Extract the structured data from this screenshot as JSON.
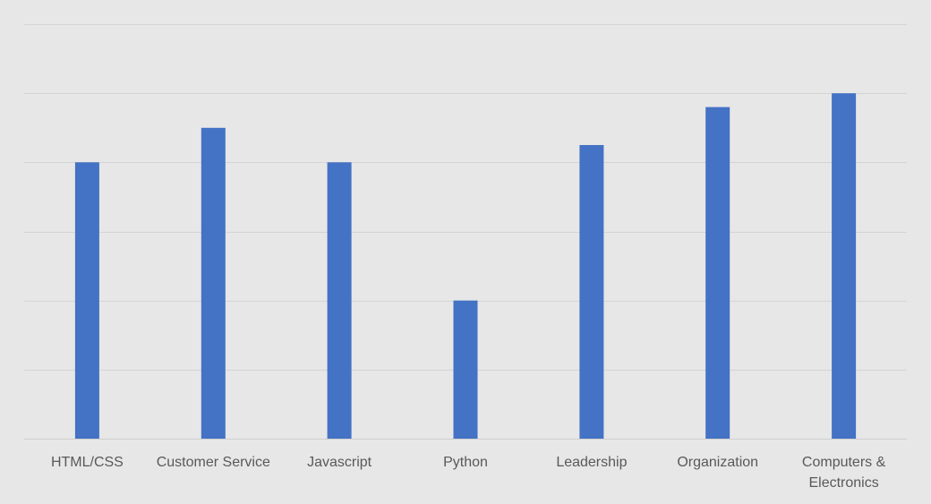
{
  "chart_data": {
    "type": "bar",
    "categories": [
      "HTML/CSS",
      "Customer Service",
      "Javascript",
      "Python",
      "Leadership",
      "Organization",
      "Computers & Electronics"
    ],
    "category_lines": [
      [
        "HTML/CSS"
      ],
      [
        "Customer Service"
      ],
      [
        "Javascript"
      ],
      [
        "Python"
      ],
      [
        "Leadership"
      ],
      [
        "Organization"
      ],
      [
        "Computers &",
        "Electronics"
      ]
    ],
    "values": [
      4,
      4.5,
      4,
      2,
      4.25,
      4.8,
      5
    ],
    "ylim": [
      0,
      6
    ],
    "grid": true,
    "legend": "none",
    "bar_color": "#4472c4"
  }
}
